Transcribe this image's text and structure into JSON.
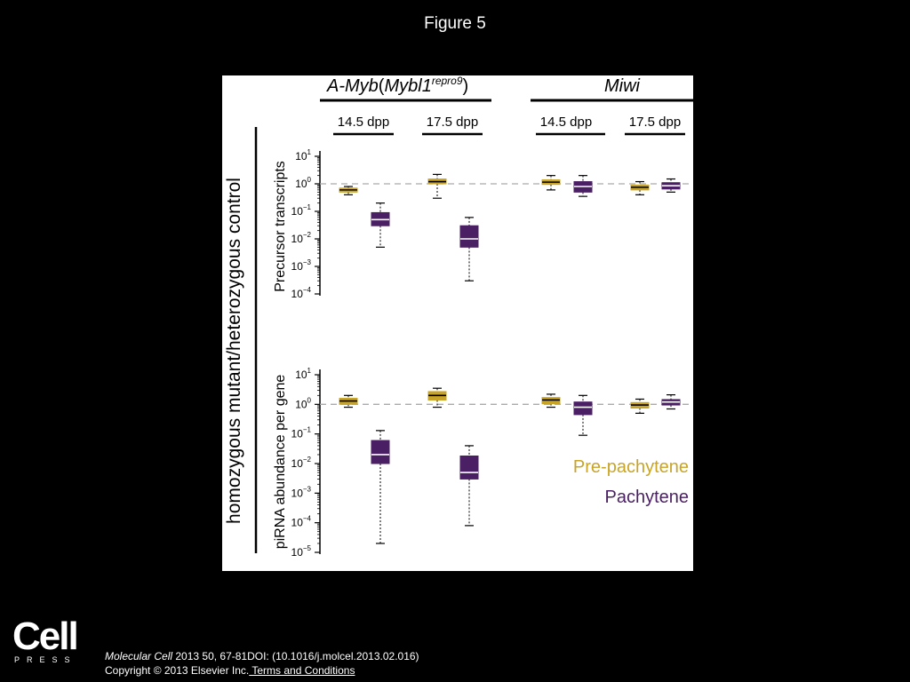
{
  "slide": {
    "title": "Figure 5"
  },
  "figure": {
    "ylabel_main": "homozygous mutant/heterozygous control",
    "groups": [
      {
        "gene": "A-Myb",
        "allele_base": "Mybl1",
        "allele_sup": "repro9",
        "paren_open": "(",
        "paren_close": ")",
        "dpp": [
          "14.5 dpp",
          "17.5 dpp"
        ]
      },
      {
        "gene": "Miwi",
        "dpp": [
          "14.5 dpp",
          "17.5 dpp"
        ]
      }
    ]
  },
  "chart_data": [
    {
      "type": "box",
      "ylabel": "Precursor transcripts",
      "yscale": "log10",
      "ylim_exp": [
        -4,
        1
      ],
      "ytick_exponents": [
        "1",
        "0",
        "−1",
        "−2",
        "−3",
        "−4"
      ],
      "reference_line": 1,
      "series": [
        {
          "name": "Pre-pachytene",
          "boxes": [
            {
              "category": "A-Myb 14.5 dpp",
              "whisker_low": 0.4,
              "q1": 0.5,
              "median": 0.6,
              "q3": 0.7,
              "whisker_high": 0.8
            },
            {
              "category": "A-Myb 17.5 dpp",
              "whisker_low": 0.3,
              "q1": 1.0,
              "median": 1.2,
              "q3": 1.5,
              "whisker_high": 2.2
            },
            {
              "category": "Miwi 14.5 dpp",
              "whisker_low": 0.6,
              "q1": 0.95,
              "median": 1.15,
              "q3": 1.4,
              "whisker_high": 2.0
            },
            {
              "category": "Miwi 17.5 dpp",
              "whisker_low": 0.4,
              "q1": 0.6,
              "median": 0.75,
              "q3": 0.9,
              "whisker_high": 1.2
            }
          ]
        },
        {
          "name": "Pachytene",
          "boxes": [
            {
              "category": "A-Myb 14.5 dpp",
              "whisker_low": 0.005,
              "q1": 0.03,
              "median": 0.05,
              "q3": 0.09,
              "whisker_high": 0.2
            },
            {
              "category": "A-Myb 17.5 dpp",
              "whisker_low": 0.0003,
              "q1": 0.005,
              "median": 0.01,
              "q3": 0.03,
              "whisker_high": 0.06
            },
            {
              "category": "Miwi 14.5 dpp",
              "whisker_low": 0.35,
              "q1": 0.5,
              "median": 0.8,
              "q3": 1.2,
              "whisker_high": 2.0
            },
            {
              "category": "Miwi 17.5 dpp",
              "whisker_low": 0.5,
              "q1": 0.65,
              "median": 0.85,
              "q3": 1.1,
              "whisker_high": 1.5
            }
          ]
        }
      ]
    },
    {
      "type": "box",
      "ylabel": "piRNA abundance per gene",
      "yscale": "log10",
      "ylim_exp": [
        -5,
        1
      ],
      "ytick_exponents": [
        "1",
        "0",
        "−1",
        "−2",
        "−3",
        "−4",
        "−5"
      ],
      "reference_line": 1,
      "series": [
        {
          "name": "Pre-pachytene",
          "boxes": [
            {
              "category": "A-Myb 14.5 dpp",
              "whisker_low": 0.8,
              "q1": 1.0,
              "median": 1.3,
              "q3": 1.6,
              "whisker_high": 2.0
            },
            {
              "category": "A-Myb 17.5 dpp",
              "whisker_low": 0.8,
              "q1": 1.4,
              "median": 2.0,
              "q3": 2.7,
              "whisker_high": 3.5
            },
            {
              "category": "Miwi 14.5 dpp",
              "whisker_low": 0.8,
              "q1": 1.05,
              "median": 1.4,
              "q3": 1.7,
              "whisker_high": 2.2
            },
            {
              "category": "Miwi 17.5 dpp",
              "whisker_low": 0.5,
              "q1": 0.75,
              "median": 0.95,
              "q3": 1.15,
              "whisker_high": 1.5
            }
          ]
        },
        {
          "name": "Pachytene",
          "boxes": [
            {
              "category": "A-Myb 14.5 dpp",
              "whisker_low": 2e-05,
              "q1": 0.01,
              "median": 0.02,
              "q3": 0.06,
              "whisker_high": 0.13
            },
            {
              "category": "A-Myb 17.5 dpp",
              "whisker_low": 8e-05,
              "q1": 0.003,
              "median": 0.005,
              "q3": 0.018,
              "whisker_high": 0.04
            },
            {
              "category": "Miwi 14.5 dpp",
              "whisker_low": 0.09,
              "q1": 0.45,
              "median": 0.8,
              "q3": 1.2,
              "whisker_high": 2.0
            },
            {
              "category": "Miwi 17.5 dpp",
              "whisker_low": 0.7,
              "q1": 0.95,
              "median": 1.2,
              "q3": 1.45,
              "whisker_high": 2.1
            }
          ]
        }
      ]
    }
  ],
  "legend": {
    "items": [
      {
        "label": "Pre-pachytene",
        "color": "#c9a426"
      },
      {
        "label": "Pachytene",
        "color": "#4a1f63"
      }
    ]
  },
  "colors": {
    "pre_pachytene": "#c9a426",
    "pachytene": "#4a1f63",
    "reference_line": "#aaaaaa"
  },
  "footer": {
    "logo_word": "Cell",
    "logo_press": "PRESS",
    "journal": "Molecular Cell",
    "citation": " 2013 50, 67-81DOI: (10.1016/j.molcel.2013.02.016)",
    "copyright": "Copyright © 2013 Elsevier Inc.",
    "terms": " Terms and Conditions"
  }
}
